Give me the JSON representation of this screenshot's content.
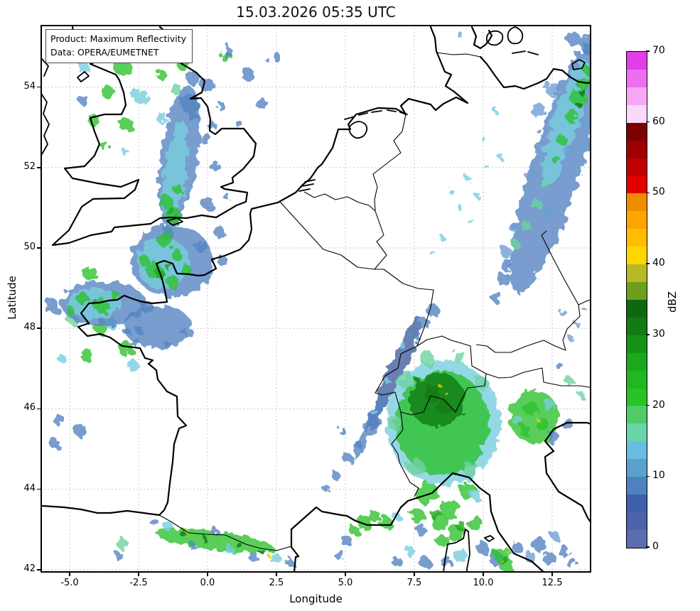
{
  "title": "15.03.2026 05:35 UTC",
  "annotation": {
    "product_line": "Product: Maximum Reflectivity",
    "data_line": "Data: OPERA/EUMETNET"
  },
  "axes": {
    "xlabel": "Longitude",
    "ylabel": "Latitude",
    "x_ticks": [
      {
        "label": "-5.0",
        "lon": -5.0
      },
      {
        "label": "-2.5",
        "lon": -2.5
      },
      {
        "label": "0.0",
        "lon": 0.0
      },
      {
        "label": "2.5",
        "lon": 2.5
      },
      {
        "label": "5.0",
        "lon": 5.0
      },
      {
        "label": "7.5",
        "lon": 7.5
      },
      {
        "label": "10.0",
        "lon": 10.0
      },
      {
        "label": "12.5",
        "lon": 12.5
      }
    ],
    "y_ticks": [
      {
        "label": "54",
        "lat": 54
      },
      {
        "label": "52",
        "lat": 52
      },
      {
        "label": "50",
        "lat": 50
      },
      {
        "label": "48",
        "lat": 48
      },
      {
        "label": "46",
        "lat": 46
      },
      {
        "label": "44",
        "lat": 44
      },
      {
        "label": "42",
        "lat": 42
      }
    ]
  },
  "colorbar": {
    "label": "dBZ",
    "min": 0,
    "max": 70,
    "ticks": [
      {
        "label": "70",
        "value": 70
      },
      {
        "label": "60",
        "value": 60
      },
      {
        "label": "50",
        "value": 50
      },
      {
        "label": "40",
        "value": 40
      },
      {
        "label": "30",
        "value": 30
      },
      {
        "label": "20",
        "value": 20
      },
      {
        "label": "10",
        "value": 10
      },
      {
        "label": "0",
        "value": 0
      }
    ],
    "colors_top_to_bottom": [
      "#e23ee6",
      "#ee6ef0",
      "#f6a8f6",
      "#fbd9fb",
      "#7c0000",
      "#9e0000",
      "#be0000",
      "#e00000",
      "#ef8c00",
      "#ffa300",
      "#ffbd00",
      "#ffd700",
      "#b7b925",
      "#6f9e1e",
      "#0f680f",
      "#117c11",
      "#169216",
      "#1ca81c",
      "#21b721",
      "#26c426",
      "#50cb69",
      "#69d4a7",
      "#69bde0",
      "#5ca0ce",
      "#4e82be",
      "#405fac",
      "#4d63a9",
      "#5d6cae"
    ]
  },
  "map": {
    "extent": {
      "lon_min": -6,
      "lon_max": 14,
      "lat_min": 41.9,
      "lat_max": 55.5
    }
  }
}
